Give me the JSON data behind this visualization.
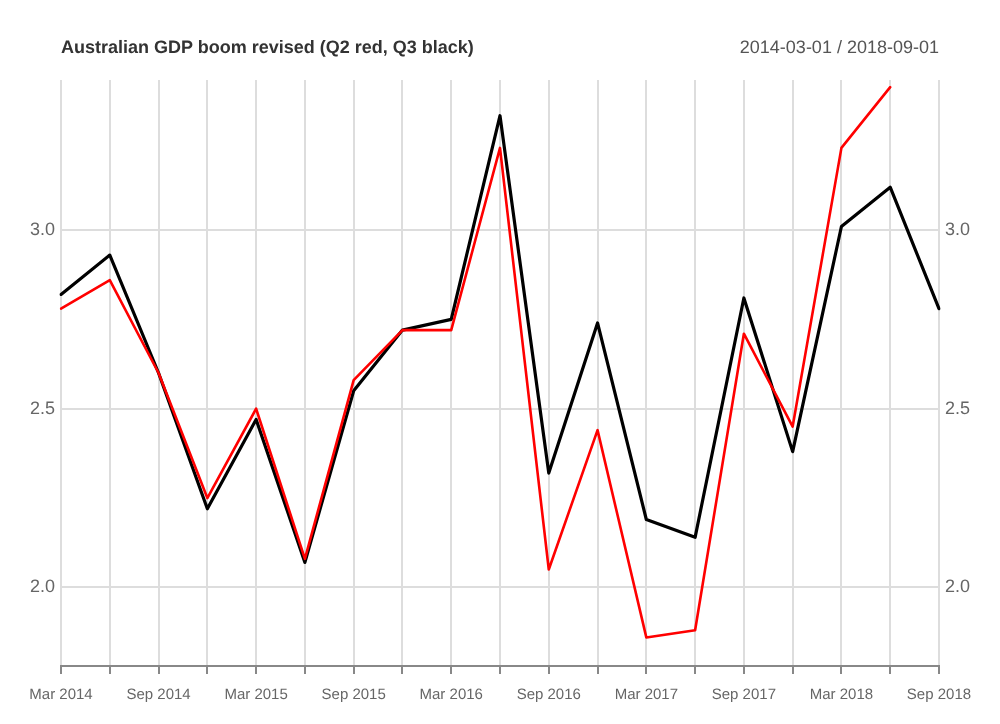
{
  "chart_data": {
    "type": "line",
    "title": "Australian GDP boom revised (Q2 red, Q3 black)",
    "subtitle": "2014-03-01 / 2018-09-01",
    "categories": [
      "Mar 2014",
      null,
      "Sep 2014",
      null,
      "Mar 2015",
      null,
      "Sep 2015",
      null,
      "Mar 2016",
      null,
      "Sep 2016",
      null,
      "Mar 2017",
      null,
      "Sep 2017",
      null,
      "Mar 2018",
      null,
      "Sep 2018"
    ],
    "series": [
      {
        "color": "#ff0000",
        "values": [
          2.78,
          2.86,
          2.6,
          2.25,
          2.5,
          2.08,
          2.58,
          2.72,
          2.72,
          3.23,
          2.05,
          2.44,
          1.86,
          1.88,
          2.71,
          2.45,
          3.23,
          3.4,
          null
        ]
      },
      {
        "color": "#000000",
        "values": [
          2.82,
          2.93,
          2.6,
          2.22,
          2.47,
          2.07,
          2.55,
          2.72,
          2.75,
          3.32,
          2.32,
          2.74,
          2.19,
          2.14,
          2.81,
          2.38,
          3.01,
          3.12,
          2.78
        ]
      }
    ],
    "ylim": [
      1.78,
      3.42
    ],
    "yticks": [
      {
        "value": 2,
        "label": "2.0"
      },
      {
        "value": 2.5,
        "label": "2.5"
      },
      {
        "value": 3,
        "label": "3.0"
      }
    ],
    "y2lim": [
      1.78,
      3.42
    ],
    "y2ticks": [
      {
        "value": 2,
        "label": "2.0"
      },
      {
        "value": 2.5,
        "label": "2.5"
      },
      {
        "value": 3,
        "label": "3.0"
      }
    ],
    "grid": true,
    "legend": false,
    "marker": "none",
    "line_style": "solid"
  }
}
